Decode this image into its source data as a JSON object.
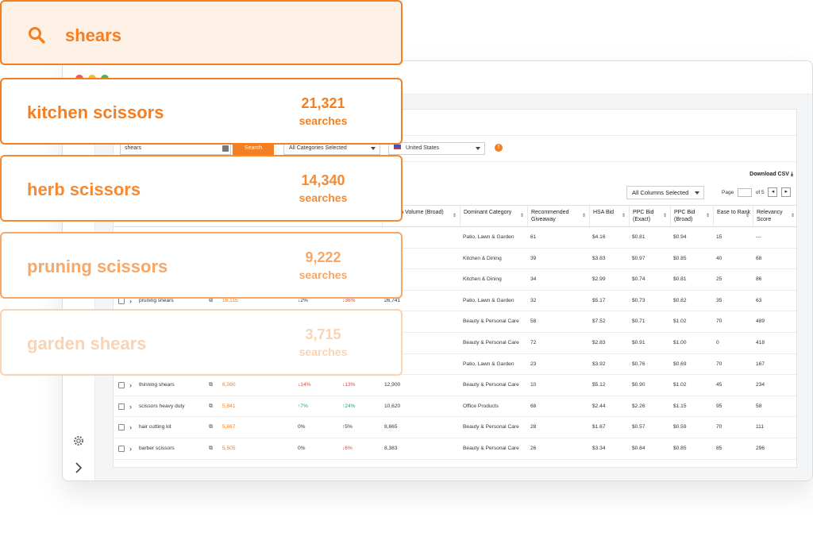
{
  "search_query": "shears",
  "keyword_cards": [
    {
      "name": "kitchen scissors",
      "count": "21,321",
      "unit": "searches"
    },
    {
      "name": "herb scissors",
      "count": "14,340",
      "unit": "searches"
    },
    {
      "name": "pruning scissors",
      "count": "9,222",
      "unit": "searches"
    },
    {
      "name": "garden shears",
      "count": "3,715",
      "unit": "searches"
    }
  ],
  "filters": {
    "keyword_value": "shears",
    "search_label": "Search",
    "category": "All Categories Selected",
    "marketplace": "United States",
    "info": "!"
  },
  "toolbar": {
    "download_label": "Download CSV",
    "columns_label": "All Columns Selected",
    "page_label": "Page",
    "page_of": "of 5"
  },
  "columns": [
    "Search Volume (Broad)",
    "Dominant Category",
    "Recommended Giveaway",
    "HSA Bid",
    "PPC Bid (Exact)",
    "PPC Bid (Broad)",
    "Ease to Rank",
    "Relevancy Score"
  ],
  "rows": [
    {
      "kw": "",
      "vol": "",
      "t1": "",
      "t2": "",
      "broad": "",
      "cat": "Patio, Lawn & Garden",
      "give": "61",
      "hsa": "$4.16",
      "ppce": "$0.81",
      "ppcb": "$0.94",
      "ease": "15",
      "rel": "---"
    },
    {
      "kw": "",
      "vol": "",
      "t1": "",
      "t2": "",
      "broad": "",
      "cat": "Kitchen & Dining",
      "give": "39",
      "hsa": "$3.83",
      "ppce": "$0.97",
      "ppcb": "$0.85",
      "ease": "40",
      "rel": "68"
    },
    {
      "kw": "",
      "vol": "",
      "t1": "",
      "t2": "",
      "broad": "",
      "cat": "Kitchen & Dining",
      "give": "34",
      "hsa": "$2.99",
      "ppce": "$0.74",
      "ppcb": "$0.81",
      "ease": "25",
      "rel": "86"
    },
    {
      "kw": "pruning shears",
      "vol": "16,115",
      "t1": "2%",
      "t2": "36%",
      "broad": "26,741",
      "cat": "Patio, Lawn & Garden",
      "give": "32",
      "hsa": "$5.17",
      "ppce": "$0.73",
      "ppcb": "$0.82",
      "ease": "35",
      "rel": "63"
    },
    {
      "kw": "",
      "vol": "",
      "t1": "",
      "t2": "",
      "broad": "",
      "cat": "Beauty & Personal Care",
      "give": "58",
      "hsa": "$7.52",
      "ppce": "$0.71",
      "ppcb": "$1.02",
      "ease": "70",
      "rel": "489"
    },
    {
      "kw": "",
      "vol": "",
      "t1": "",
      "t2": "",
      "broad": "",
      "cat": "Beauty & Personal Care",
      "give": "72",
      "hsa": "$2.83",
      "ppce": "$0.91",
      "ppcb": "$1.00",
      "ease": "0",
      "rel": "418"
    },
    {
      "kw": "",
      "vol": "",
      "t1": "",
      "t2": "",
      "broad": "",
      "cat": "Patio, Lawn & Garden",
      "give": "23",
      "hsa": "$3.92",
      "ppce": "$0.76",
      "ppcb": "$0.69",
      "ease": "70",
      "rel": "167"
    },
    {
      "kw": "thinning shears",
      "vol": "6,080",
      "t1": "14%",
      "t2": "13%",
      "broad": "12,900",
      "cat": "Beauty & Personal Care",
      "give": "10",
      "hsa": "$5.12",
      "ppce": "$0.90",
      "ppcb": "$1.02",
      "ease": "45",
      "rel": "234"
    },
    {
      "kw": "scissors heavy duty",
      "vol": "5,841",
      "t1": "7%",
      "t2": "24%",
      "broad": "10,620",
      "cat": "Office Products",
      "give": "68",
      "hsa": "$2.44",
      "ppce": "$2.26",
      "ppcb": "$1.15",
      "ease": "95",
      "rel": "58"
    },
    {
      "kw": "hair cutting kit",
      "vol": "5,667",
      "t1": "0%",
      "t2": "5%",
      "broad": "8,665",
      "cat": "Beauty & Personal Care",
      "give": "28",
      "hsa": "$1.67",
      "ppce": "$0.57",
      "ppcb": "$0.59",
      "ease": "70",
      "rel": "111"
    },
    {
      "kw": "barber scissors",
      "vol": "5,505",
      "t1": "0%",
      "t2": "6%",
      "broad": "8,383",
      "cat": "Beauty & Personal Care",
      "give": "26",
      "hsa": "$3.34",
      "ppce": "$0.84",
      "ppcb": "$0.85",
      "ease": "85",
      "rel": "296"
    }
  ],
  "colors": {
    "accent": "#f47e20",
    "down": "#e0413e",
    "up": "#23a26d"
  }
}
